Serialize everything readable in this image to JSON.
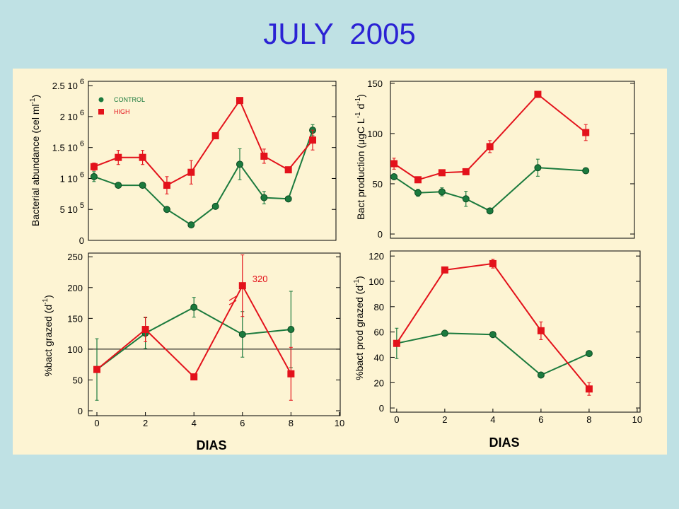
{
  "title": "JULY  2005",
  "colors": {
    "background": "#bfe1e4",
    "panel": "#fdf4d3",
    "title": "#2b22d4",
    "axis": "#000000",
    "control": "#1b7a3d",
    "high": "#e3121b"
  },
  "chart_data": [
    {
      "id": "bacterial-abundance",
      "type": "line",
      "ylabel": [
        {
          "text": "Bacterial abundance (cel ml"
        },
        {
          "text": "-1",
          "sup": true
        },
        {
          "text": ")"
        }
      ],
      "xlim": [
        -0.23,
        9.96
      ],
      "ylim": [
        0,
        2570000
      ],
      "yticks": [
        {
          "value": 0,
          "label": "0"
        },
        {
          "value": 500000,
          "label": "5 10",
          "sup": "5"
        },
        {
          "value": 1000000,
          "label": "1 10",
          "sup": "6"
        },
        {
          "value": 1500000,
          "label": "1.5 10",
          "sup": "6"
        },
        {
          "value": 2000000,
          "label": "2 10",
          "sup": "6"
        },
        {
          "value": 2500000,
          "label": "2.5 10",
          "sup": "6"
        }
      ],
      "legend": {
        "position": "top-left"
      },
      "series": [
        {
          "name": "CONTROL",
          "color": "#1b7a3d",
          "marker": "circle",
          "x": [
            0,
            1,
            2,
            3,
            4,
            5,
            6,
            7,
            8,
            9
          ],
          "y": [
            1030000,
            890000,
            890000,
            500000,
            250000,
            550000,
            1230000,
            690000,
            670000,
            1780000
          ],
          "err": [
            80000,
            0,
            0,
            30000,
            40000,
            30000,
            250000,
            100000,
            0,
            90000
          ]
        },
        {
          "name": "HIGH",
          "color": "#e3121b",
          "marker": "square",
          "x": [
            0,
            1,
            2,
            3,
            4,
            5,
            6,
            7,
            8,
            9
          ],
          "y": [
            1190000,
            1340000,
            1340000,
            890000,
            1100000,
            1690000,
            2260000,
            1360000,
            1140000,
            1620000
          ],
          "err": [
            60000,
            115000,
            115000,
            140000,
            190000,
            0,
            0,
            115000,
            0,
            160000
          ]
        }
      ]
    },
    {
      "id": "bact-production",
      "type": "line",
      "ylabel": [
        {
          "text": "Bact production (μgC L"
        },
        {
          "text": "-1",
          "sup": true
        },
        {
          "text": " d"
        },
        {
          "text": "-1",
          "sup": true
        },
        {
          "text": ")"
        }
      ],
      "xlim": [
        -0.15,
        10.03
      ],
      "ylim": [
        -4.2,
        152
      ],
      "yticks": [
        {
          "value": 0,
          "label": "0"
        },
        {
          "value": 50,
          "label": "50"
        },
        {
          "value": 100,
          "label": "100"
        },
        {
          "value": 150,
          "label": "150"
        }
      ],
      "series": [
        {
          "color": "#1b7a3d",
          "marker": "circle",
          "x": [
            0,
            1,
            2,
            3,
            4,
            6,
            8
          ],
          "y": [
            57,
            41,
            42,
            35,
            23,
            66,
            63
          ],
          "err": [
            0,
            3.5,
            4,
            7.5,
            0,
            8.5,
            0
          ]
        },
        {
          "color": "#e3121b",
          "marker": "square",
          "x": [
            0,
            1,
            2,
            3,
            4,
            6,
            8
          ],
          "y": [
            70,
            54,
            61,
            62,
            87,
            139,
            101
          ],
          "err": [
            5.5,
            3,
            0,
            0,
            6,
            0,
            8
          ]
        }
      ]
    },
    {
      "id": "bact-grazed",
      "type": "line",
      "ylabel": [
        {
          "text": "%bact grazed (d"
        },
        {
          "text": "-1",
          "sup": true
        },
        {
          "text": ")"
        }
      ],
      "xlabel": "DIAS",
      "xlim": [
        -0.35,
        10.03
      ],
      "ylim": [
        -8,
        256
      ],
      "xticks": [
        {
          "value": 0,
          "label": "0"
        },
        {
          "value": 2,
          "label": "2"
        },
        {
          "value": 4,
          "label": "4"
        },
        {
          "value": 6,
          "label": "6"
        },
        {
          "value": 8,
          "label": "8"
        },
        {
          "value": 10,
          "label": "10"
        }
      ],
      "yticks": [
        {
          "value": 0,
          "label": "0"
        },
        {
          "value": 50,
          "label": "50"
        },
        {
          "value": 100,
          "label": "100"
        },
        {
          "value": 150,
          "label": "150"
        },
        {
          "value": 200,
          "label": "200"
        },
        {
          "value": 250,
          "label": "250"
        }
      ],
      "reference_line": 100,
      "annotations": [
        {
          "text": "320",
          "x": 6,
          "y": 203,
          "color": "#e3121b"
        }
      ],
      "break_mark": {
        "x": 5.6,
        "y": 179
      },
      "series": [
        {
          "color": "#1b7a3d",
          "marker": "circle",
          "x": [
            0,
            2,
            4,
            6,
            8
          ],
          "y": [
            67,
            126,
            168,
            124,
            132
          ],
          "err": [
            50,
            25,
            16,
            37,
            62
          ]
        },
        {
          "color": "#e3121b",
          "marker": "square",
          "x": [
            0,
            2,
            4,
            6,
            8
          ],
          "y": [
            67,
            132,
            55,
            203,
            60
          ],
          "err": [
            0,
            20,
            0,
            50,
            43
          ]
        }
      ]
    },
    {
      "id": "bact-prod-grazed",
      "type": "line",
      "ylabel": [
        {
          "text": "%bact prod grazed (d"
        },
        {
          "text": "-1",
          "sup": true
        },
        {
          "text": ")"
        }
      ],
      "xlabel": "DIAS",
      "xlim": [
        -0.26,
        10.12
      ],
      "ylim": [
        -3.3,
        124
      ],
      "xticks": [
        {
          "value": 0,
          "label": "0"
        },
        {
          "value": 2,
          "label": "2"
        },
        {
          "value": 4,
          "label": "4"
        },
        {
          "value": 6,
          "label": "6"
        },
        {
          "value": 8,
          "label": "8"
        },
        {
          "value": 10,
          "label": "10"
        }
      ],
      "yticks": [
        {
          "value": 0,
          "label": "0"
        },
        {
          "value": 20,
          "label": "20"
        },
        {
          "value": 40,
          "label": "40"
        },
        {
          "value": 60,
          "label": "60"
        },
        {
          "value": 80,
          "label": "80"
        },
        {
          "value": 100,
          "label": "100"
        },
        {
          "value": 120,
          "label": "120"
        }
      ],
      "series": [
        {
          "color": "#1b7a3d",
          "marker": "circle",
          "x": [
            0,
            2,
            4,
            6,
            8
          ],
          "y": [
            51,
            59,
            58,
            26,
            43
          ],
          "err": [
            12,
            0,
            0,
            2,
            0
          ]
        },
        {
          "color": "#e3121b",
          "marker": "square",
          "x": [
            0,
            2,
            4,
            6,
            8
          ],
          "y": [
            51,
            109,
            114,
            61,
            15
          ],
          "err": [
            0,
            0,
            3.5,
            7,
            5
          ]
        }
      ]
    }
  ]
}
